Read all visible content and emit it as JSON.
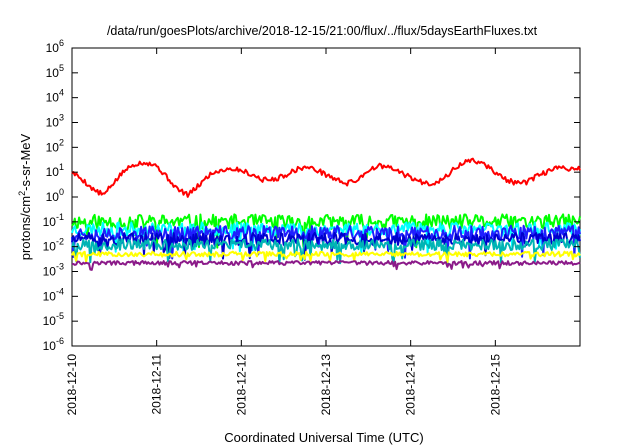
{
  "chart_data": {
    "type": "line",
    "title": "/data/run/goesPlots/archive/2018-12-15/21:00/flux/../flux/5daysEarthFluxes.txt",
    "xlabel": "Coordinated Universal Time (UTC)",
    "ylabel": "protons/cm2-s-sr-MeV",
    "ylabel_parts": {
      "pre": "protons/cm",
      "sup": "2",
      "post": "-s-sr-MeV"
    },
    "yscale": "log",
    "ylim_exp": [
      -6,
      6
    ],
    "ytick_exponents": [
      -6,
      -5,
      -4,
      -3,
      -2,
      -1,
      0,
      1,
      2,
      3,
      4,
      5,
      6
    ],
    "xlim": [
      "2018-12-10",
      "2018-12-16"
    ],
    "xticks": [
      "2018-12-10",
      "2018-12-11",
      "2018-12-12",
      "2018-12-13",
      "2018-12-14",
      "2018-12-15"
    ],
    "grid": false,
    "legend": "none",
    "series": [
      {
        "color": "#ff0000",
        "noise": 0.1,
        "points": [
          [
            "2018-12-10T00:00",
            10
          ],
          [
            "2018-12-10T03:00",
            5
          ],
          [
            "2018-12-10T06:00",
            2
          ],
          [
            "2018-12-10T09:00",
            1.2
          ],
          [
            "2018-12-10T12:00",
            4
          ],
          [
            "2018-12-10T15:00",
            12
          ],
          [
            "2018-12-10T18:00",
            22
          ],
          [
            "2018-12-10T21:00",
            25
          ],
          [
            "2018-12-11T00:00",
            18
          ],
          [
            "2018-12-11T03:00",
            6
          ],
          [
            "2018-12-11T06:00",
            2
          ],
          [
            "2018-12-11T09:00",
            1.2
          ],
          [
            "2018-12-11T12:00",
            3
          ],
          [
            "2018-12-11T15:00",
            8
          ],
          [
            "2018-12-11T18:00",
            12
          ],
          [
            "2018-12-11T21:00",
            14
          ],
          [
            "2018-12-12T00:00",
            12
          ],
          [
            "2018-12-12T03:00",
            8
          ],
          [
            "2018-12-12T06:00",
            5
          ],
          [
            "2018-12-12T09:00",
            5
          ],
          [
            "2018-12-12T12:00",
            7
          ],
          [
            "2018-12-12T15:00",
            12
          ],
          [
            "2018-12-12T18:00",
            16
          ],
          [
            "2018-12-12T21:00",
            13
          ],
          [
            "2018-12-13T00:00",
            8
          ],
          [
            "2018-12-13T03:00",
            5
          ],
          [
            "2018-12-13T06:00",
            3.5
          ],
          [
            "2018-12-13T09:00",
            5
          ],
          [
            "2018-12-13T12:00",
            12
          ],
          [
            "2018-12-13T15:00",
            18
          ],
          [
            "2018-12-13T18:00",
            15
          ],
          [
            "2018-12-13T21:00",
            10
          ],
          [
            "2018-12-14T00:00",
            6
          ],
          [
            "2018-12-14T03:00",
            4
          ],
          [
            "2018-12-14T06:00",
            3.5
          ],
          [
            "2018-12-14T09:00",
            5
          ],
          [
            "2018-12-14T12:00",
            12
          ],
          [
            "2018-12-14T15:00",
            25
          ],
          [
            "2018-12-14T18:00",
            30
          ],
          [
            "2018-12-14T21:00",
            20
          ],
          [
            "2018-12-15T00:00",
            10
          ],
          [
            "2018-12-15T03:00",
            5
          ],
          [
            "2018-12-15T06:00",
            3.5
          ],
          [
            "2018-12-15T09:00",
            4
          ],
          [
            "2018-12-15T12:00",
            7
          ],
          [
            "2018-12-15T15:00",
            11
          ],
          [
            "2018-12-15T18:00",
            15
          ],
          [
            "2018-12-15T21:00",
            14
          ]
        ]
      },
      {
        "color": "#00ff00",
        "base": 0.1,
        "noise": 0.3,
        "seed": 11
      },
      {
        "color": "#00ffff",
        "base": 0.05,
        "noise": 0.28,
        "seed": 23
      },
      {
        "color": "#1f1fff",
        "base": 0.035,
        "noise": 0.3,
        "seed": 37
      },
      {
        "color": "#0000cd",
        "base": 0.02,
        "noise": 0.25,
        "seed": 51
      },
      {
        "color": "#00b4b4",
        "base": 0.012,
        "noise": 0.22,
        "seed": 67
      },
      {
        "color": "#ffff00",
        "base": 0.005,
        "noise": 0.1,
        "seed": 79
      },
      {
        "color": "#8b1a89",
        "base": 0.0022,
        "noise": 0.08,
        "seed": 97
      }
    ]
  }
}
